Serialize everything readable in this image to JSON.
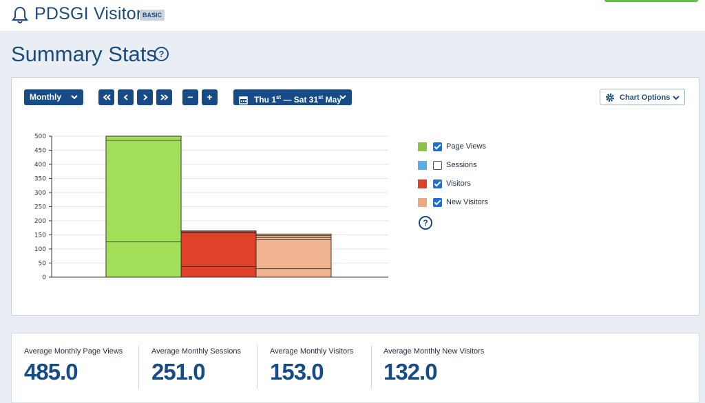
{
  "app": {
    "title": "PDSGI Visitor",
    "plan_badge": "BASIC",
    "icon": "bell-icon"
  },
  "page": {
    "title": "Summary Stats",
    "help": "?"
  },
  "toolbar": {
    "period": "Monthly",
    "nav": {
      "first": "«",
      "prev": "‹",
      "next": "›",
      "last": "»"
    },
    "zoom": {
      "out": "−",
      "in": "+"
    },
    "date_range": {
      "start_day": "Thu 1",
      "start_sup": "st",
      "sep": " — Sat 31",
      "end_sup": "st",
      "month": " May"
    },
    "chart_options": "Chart Options"
  },
  "legend": {
    "items": [
      {
        "label": "Page Views",
        "color": "#8bc34a",
        "checked": true
      },
      {
        "label": "Sessions",
        "color": "#5aaee6",
        "checked": false
      },
      {
        "label": "Visitors",
        "color": "#e0412a",
        "checked": true
      },
      {
        "label": "New Visitors",
        "color": "#edaa80",
        "checked": true
      }
    ],
    "help": "?"
  },
  "chart_data": {
    "type": "bar",
    "categories": [
      "Page Views",
      "Visitors",
      "New Visitors"
    ],
    "ylim": [
      0,
      500
    ],
    "yticks": [
      0,
      50,
      100,
      150,
      200,
      250,
      300,
      350,
      400,
      450,
      500
    ],
    "series": [
      {
        "name": "Page Views",
        "values": [
          500,
          null,
          null
        ],
        "color": "#a3e05a",
        "inner_lines": [
          125,
          485
        ]
      },
      {
        "name": "Visitors",
        "values": [
          null,
          164,
          null
        ],
        "color": "#e0412a",
        "inner_lines": [
          38,
          157,
          160
        ]
      },
      {
        "name": "New Visitors",
        "values": [
          null,
          null,
          153
        ],
        "color": "#efb48f",
        "inner_lines": [
          30,
          133,
          141,
          148
        ]
      }
    ],
    "grid": true
  },
  "stats": [
    {
      "label": "Average Monthly Page Views",
      "value": "485.0"
    },
    {
      "label": "Average Monthly Sessions",
      "value": "251.0"
    },
    {
      "label": "Average Monthly Visitors",
      "value": "153.0"
    },
    {
      "label": "Average Monthly New Visitors",
      "value": "132.0"
    }
  ]
}
